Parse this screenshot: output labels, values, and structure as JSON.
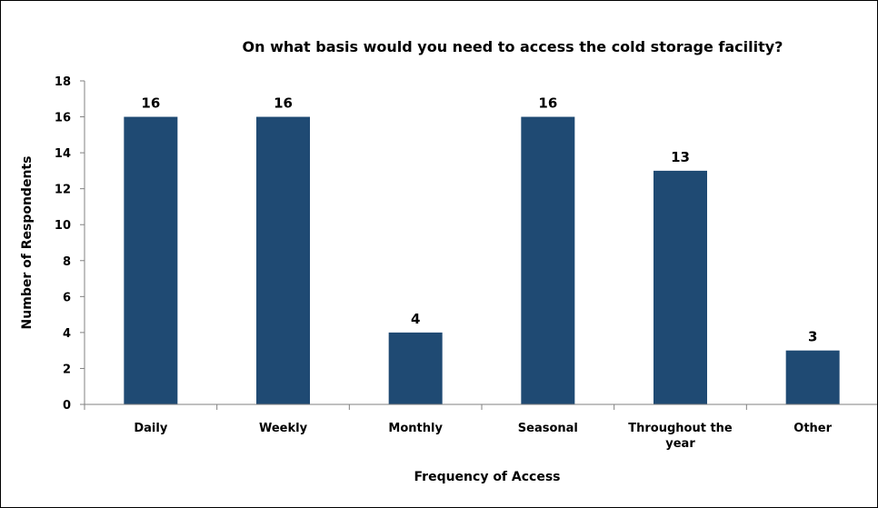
{
  "chart_data": {
    "type": "bar",
    "title": "On what basis would you need to access the cold storage facility?",
    "xlabel": "Frequency of Access",
    "ylabel": "Number of Respondents",
    "categories": [
      "Daily",
      "Weekly",
      "Monthly",
      "Seasonal",
      "Throughout the year",
      "Other"
    ],
    "values": [
      16,
      16,
      4,
      16,
      13,
      3
    ],
    "ylim": [
      0,
      18
    ],
    "yticks": [
      0,
      2,
      4,
      6,
      8,
      10,
      12,
      14,
      16,
      18
    ],
    "grid": false,
    "legend": "none",
    "bar_color": "#1F4A73"
  }
}
